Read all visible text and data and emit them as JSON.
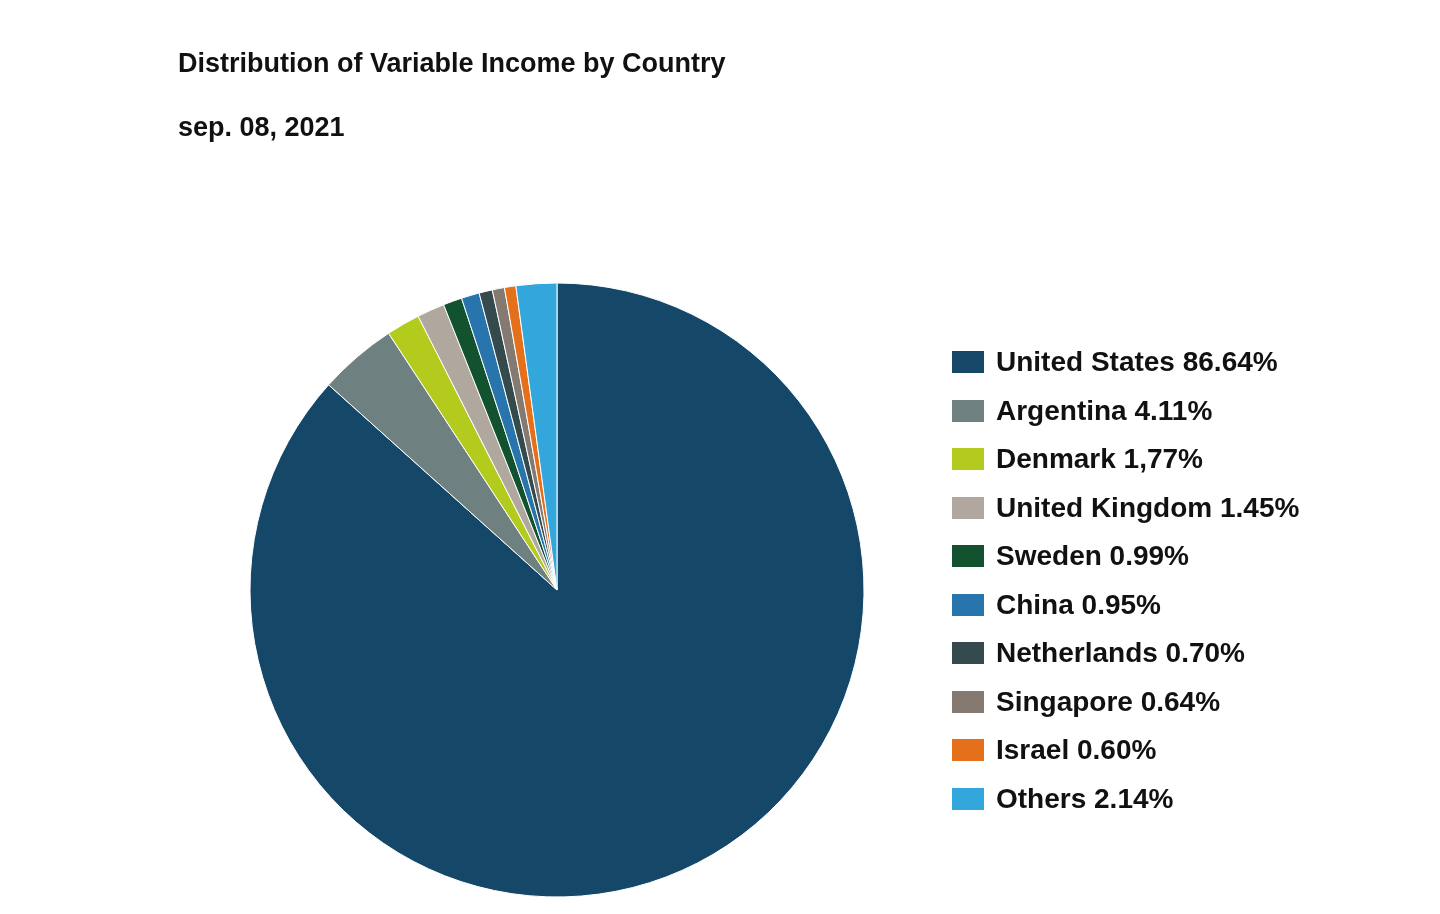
{
  "chart_data": {
    "type": "pie",
    "title": "Distribution of Variable Income by Country",
    "subtitle": "sep. 08, 2021",
    "categories": [
      "United States",
      "Argentina",
      "Denmark",
      "United Kingdom",
      "Sweden",
      "China",
      "Netherlands",
      "Singapore",
      "Israel",
      "Others"
    ],
    "values": [
      86.64,
      4.11,
      1.77,
      1.45,
      0.99,
      0.95,
      0.7,
      0.64,
      0.6,
      2.14
    ],
    "value_labels": [
      "86.64%",
      "4.11%",
      "1,77%",
      "1.45%",
      "0.99%",
      "0.95%",
      "0.70%",
      "0.64%",
      "0.60%",
      "2.14%"
    ],
    "colors": [
      "#154769",
      "#6e8080",
      "#b2cb1d",
      "#b0a89e",
      "#12522e",
      "#2874ad",
      "#354a4c",
      "#847a72",
      "#e5701c",
      "#33a6dc"
    ],
    "legend": "right"
  }
}
